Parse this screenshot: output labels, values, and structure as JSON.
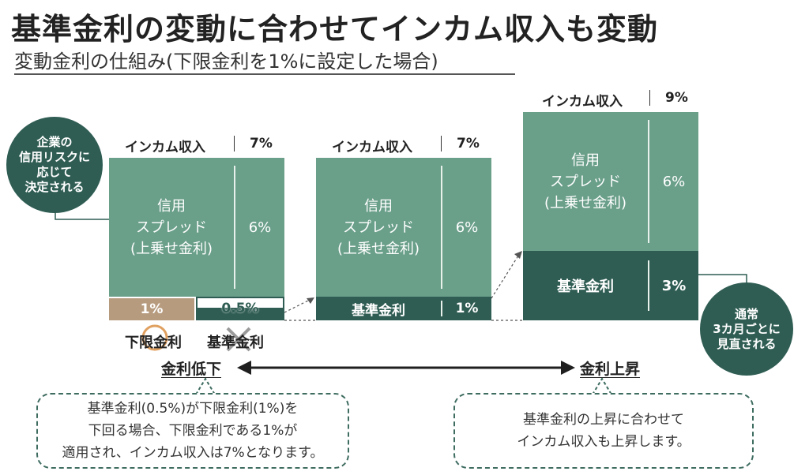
{
  "title": "基準金利の変動に合わせてインカム収入も変動",
  "subtitle": "変動金利の仕組み(下限金利を1%に設定した場合)",
  "callout_left": "企業の\n信用リスクに\n応じて\n決定される",
  "callout_right": "通常\n3カ月ごとに\n見直される",
  "income_label": "インカム収入",
  "bars": [
    {
      "income_pct": "7%",
      "spread_label": "信用\nスプレッド\n(上乗せ金利)",
      "spread_pct": "6%",
      "floor_pct": "1%",
      "base_pct": "0.5%"
    },
    {
      "income_pct": "7%",
      "spread_label": "信用\nスプレッド\n(上乗せ金利)",
      "spread_pct": "6%",
      "base_label": "基準金利",
      "base_pct": "1%"
    },
    {
      "income_pct": "9%",
      "spread_label": "信用\nスプレッド\n(上乗せ金利)",
      "spread_pct": "6%",
      "base_label": "基準金利",
      "base_pct": "3%"
    }
  ],
  "floor_rate_label": "下限金利",
  "base_rate_label": "基準金利",
  "decrease_label": "金利低下",
  "increase_label": "金利上昇",
  "note_left": "基準金利(0.5%)が下限金利(1%)を\n下回る場合、下限金利である1%が\n適用され、インカム収入は7%となります。",
  "note_right": "基準金利の上昇に合わせて\nインカム収入も上昇します。",
  "colors": {
    "spread": "#6a9f8a",
    "base": "#2f5d53",
    "floor": "#b79b7f",
    "accent_orange": "#e0a060"
  }
}
